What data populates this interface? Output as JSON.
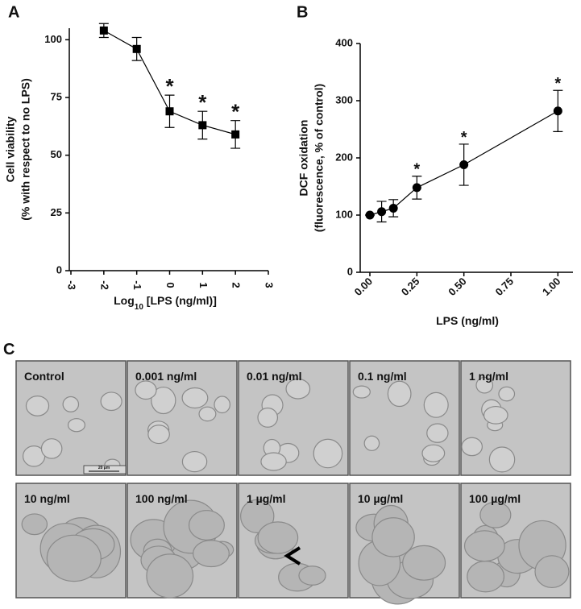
{
  "chart_data": [
    {
      "type": "line",
      "panel_label": "A",
      "y_label": [
        "Cell viability",
        "(% with respect to no LPS)"
      ],
      "x_label": [
        "Log",
        "10",
        " [LPS (ng/ml)]"
      ],
      "x": [
        -2,
        -1,
        0,
        1,
        2
      ],
      "values": [
        104,
        96,
        69,
        63,
        59
      ],
      "errors": [
        3,
        5,
        7,
        6,
        6
      ],
      "marker": "square",
      "color": "#000000",
      "xlim": [
        -3,
        3
      ],
      "xticks": [
        -3,
        -2,
        -1,
        0,
        1,
        2,
        3
      ],
      "ylim": [
        0,
        105
      ],
      "yticks": [
        0,
        25,
        50,
        75,
        100
      ],
      "annotations": [
        {
          "text": "*",
          "x": 0
        },
        {
          "text": "*",
          "x": 1
        },
        {
          "text": "*",
          "x": 2
        }
      ]
    },
    {
      "type": "line",
      "panel_label": "B",
      "y_label": [
        "DCF oxidation",
        "(fluorescence, % of control)"
      ],
      "x_label": [
        "LPS (ng/ml)"
      ],
      "x": [
        0,
        0.0625,
        0.125,
        0.25,
        0.5,
        1
      ],
      "values": [
        100,
        106,
        112,
        148,
        188,
        282
      ],
      "errors": [
        0,
        18,
        15,
        20,
        36,
        36
      ],
      "marker": "circle",
      "color": "#000000",
      "xlim": [
        -0.06,
        1.08
      ],
      "xticks": [
        {
          "value": 0,
          "label": "0.00"
        },
        {
          "value": 0.25,
          "label": "0.25"
        },
        {
          "value": 0.5,
          "label": "0.50"
        },
        {
          "value": 0.75,
          "label": "0.75"
        },
        {
          "value": 1,
          "label": "1.00"
        }
      ],
      "ylim": [
        0,
        400
      ],
      "yticks": [
        0,
        100,
        200,
        300,
        400
      ],
      "annotations": [
        {
          "text": "*",
          "x": 0.25
        },
        {
          "text": "*",
          "x": 0.5
        },
        {
          "text": "*",
          "x": 1
        }
      ]
    }
  ],
  "panel_c": {
    "label": "C",
    "scale_bar": "20 µm",
    "panels": [
      {
        "label": "Control"
      },
      {
        "label": "0.001 ng/ml"
      },
      {
        "label": "0.01 ng/ml"
      },
      {
        "label": "0.1 ng/ml"
      },
      {
        "label": "1 ng/ml"
      },
      {
        "label": "10 ng/ml"
      },
      {
        "label": "100 ng/ml"
      },
      {
        "label": "1 µg/ml"
      },
      {
        "label": "10 µg/ml"
      },
      {
        "label": "100 µg/ml"
      }
    ]
  }
}
